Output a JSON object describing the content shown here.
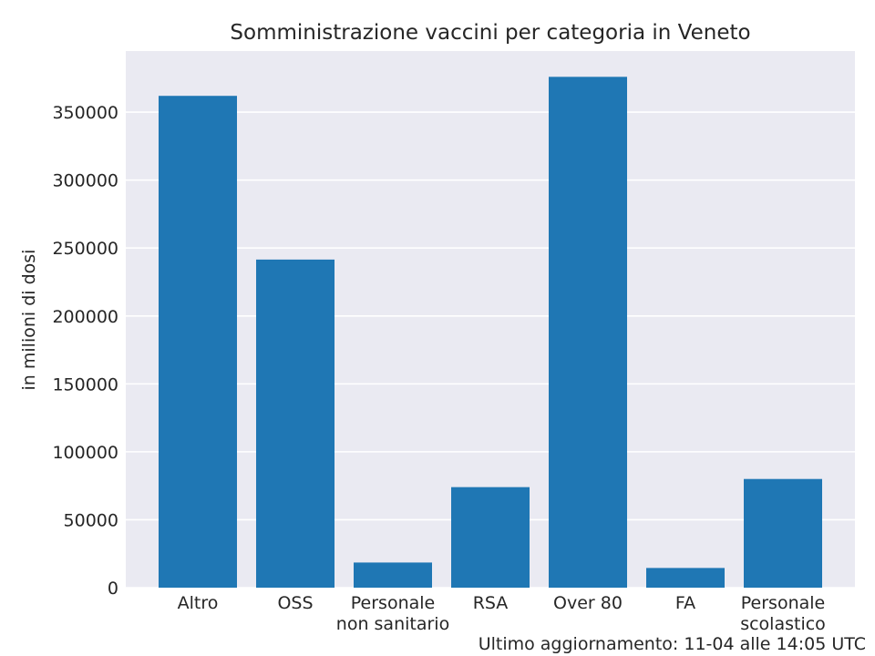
{
  "chart_data": {
    "type": "bar",
    "title": "Somministrazione vaccini per categoria in Veneto",
    "ylabel": "in milioni di dosi",
    "xlabel": "",
    "categories": [
      [
        "Altro"
      ],
      [
        "OSS"
      ],
      [
        "Personale",
        "non sanitario"
      ],
      [
        "RSA"
      ],
      [
        "Over 80"
      ],
      [
        "FA"
      ],
      [
        "Personale",
        "scolastico"
      ]
    ],
    "values": [
      362000,
      241500,
      18500,
      74000,
      376000,
      14500,
      80000
    ],
    "ylim": [
      0,
      395000
    ],
    "yticks": [
      0,
      50000,
      100000,
      150000,
      200000,
      250000,
      300000,
      350000
    ],
    "grid": true,
    "colors": {
      "bar": "#1f77b4",
      "plot_background": "#eaeaf2",
      "grid": "#ffffff",
      "text": "#262626"
    }
  },
  "footer": "Ultimo aggiornamento: 11-04 alle 14:05 UTC"
}
